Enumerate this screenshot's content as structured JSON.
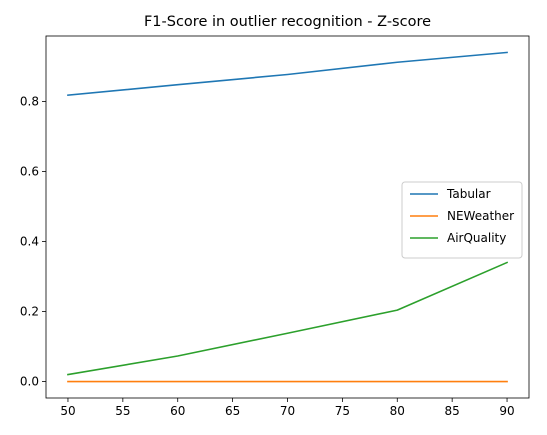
{
  "chart_data": {
    "type": "line",
    "title": "F1-Score in outlier recognition - Z-score",
    "xlabel": "",
    "ylabel": "",
    "x": [
      50,
      60,
      70,
      80,
      90
    ],
    "series": [
      {
        "name": "Tabular",
        "color": "#1f77b4",
        "values": [
          0.818,
          0.848,
          0.877,
          0.912,
          0.94
        ]
      },
      {
        "name": "NEWeather",
        "color": "#ff7f0e",
        "values": [
          0.0,
          0.0,
          0.0,
          0.0,
          0.0
        ]
      },
      {
        "name": "AirQuality",
        "color": "#2ca02c",
        "values": [
          0.02,
          0.073,
          0.138,
          0.204,
          0.34
        ]
      }
    ],
    "xlim": [
      48,
      92
    ],
    "ylim": [
      -0.047,
      0.987
    ],
    "xticks": [
      50,
      55,
      60,
      65,
      70,
      75,
      80,
      85,
      90
    ],
    "yticks": [
      0.0,
      0.2,
      0.4,
      0.6,
      0.8
    ],
    "ytick_labels": [
      "0.0",
      "0.2",
      "0.4",
      "0.6",
      "0.8"
    ],
    "grid": false,
    "legend_position": "center-right"
  }
}
